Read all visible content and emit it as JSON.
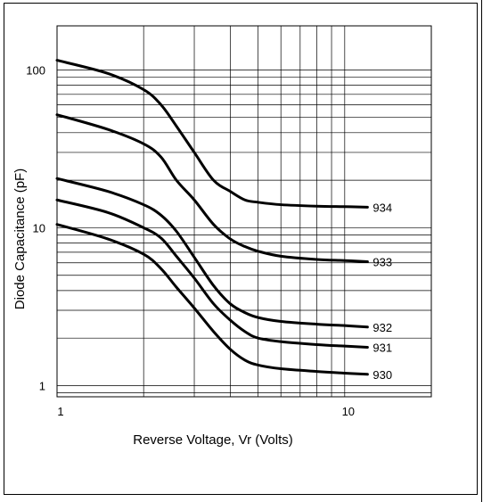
{
  "chart_data": {
    "type": "line",
    "x_scale": "log",
    "y_scale": "log",
    "xlabel": "Reverse Voltage, Vr (Volts)",
    "ylabel": "Diode Capacitance (pF)",
    "xlim": [
      1,
      20
    ],
    "ylim": [
      0.85,
      190
    ],
    "grid": true,
    "x_ticks": [
      {
        "value": 1,
        "label": "1"
      },
      {
        "value": 10,
        "label": "10"
      }
    ],
    "y_ticks": [
      {
        "value": 1,
        "label": "1"
      },
      {
        "value": 10,
        "label": "10"
      },
      {
        "value": 100,
        "label": "100"
      }
    ],
    "series": [
      {
        "name": "934",
        "x": [
          1,
          1.5,
          2,
          2.3,
          2.6,
          3,
          3.5,
          4,
          4.5,
          5,
          6,
          8,
          10,
          12
        ],
        "y": [
          115,
          95,
          75,
          60,
          44,
          30,
          20,
          17,
          15,
          14.5,
          14,
          13.7,
          13.6,
          13.5
        ]
      },
      {
        "name": "933",
        "x": [
          1,
          1.5,
          2,
          2.3,
          2.6,
          3,
          3.5,
          4,
          4.5,
          5,
          6,
          8,
          10,
          12
        ],
        "y": [
          52,
          42,
          34,
          28,
          20,
          15,
          10.5,
          8.5,
          7.6,
          7.1,
          6.6,
          6.3,
          6.2,
          6.1
        ]
      },
      {
        "name": "932",
        "x": [
          1,
          1.5,
          2,
          2.3,
          2.6,
          3,
          3.5,
          4,
          4.5,
          5,
          6,
          8,
          10,
          12
        ],
        "y": [
          20.5,
          17,
          14,
          12,
          9.5,
          6.5,
          4.3,
          3.3,
          2.9,
          2.7,
          2.55,
          2.45,
          2.4,
          2.35
        ]
      },
      {
        "name": "931",
        "x": [
          1,
          1.5,
          2,
          2.3,
          2.6,
          3,
          3.5,
          4,
          4.5,
          5,
          6,
          8,
          10,
          12
        ],
        "y": [
          15,
          12.5,
          10,
          8.6,
          6.6,
          4.8,
          3.3,
          2.6,
          2.2,
          2.0,
          1.9,
          1.82,
          1.78,
          1.75
        ]
      },
      {
        "name": "930",
        "x": [
          1,
          1.5,
          2,
          2.3,
          2.6,
          3,
          3.5,
          4,
          4.5,
          5,
          6,
          8,
          10,
          12
        ],
        "y": [
          10.5,
          8.5,
          6.8,
          5.5,
          4.2,
          3.1,
          2.2,
          1.7,
          1.45,
          1.35,
          1.28,
          1.23,
          1.2,
          1.18
        ]
      }
    ]
  }
}
